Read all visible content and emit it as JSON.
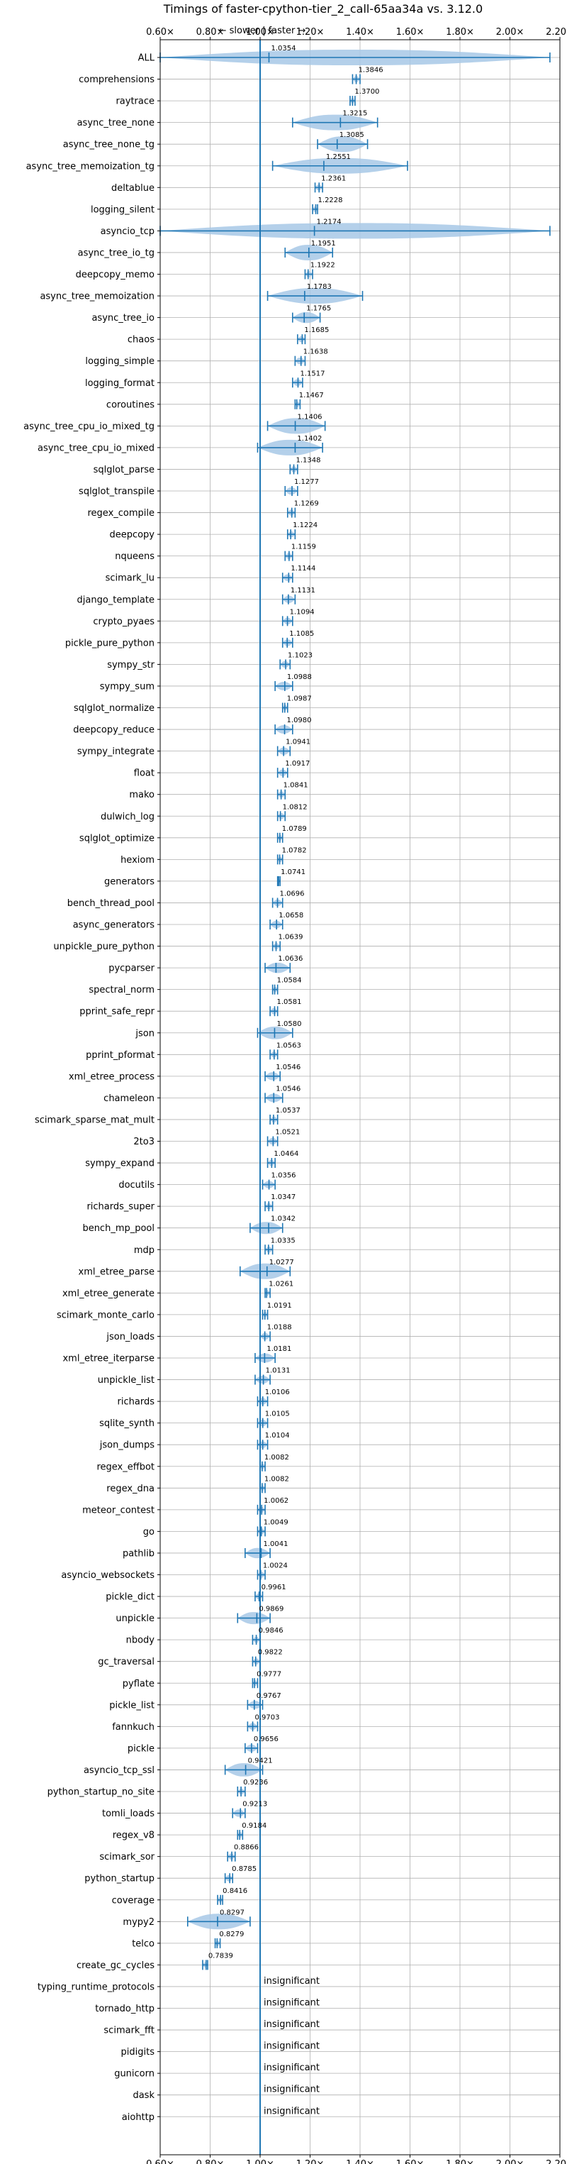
{
  "chart_data": {
    "type": "violin",
    "title": "Timings of faster-cpython-tier_2_call-65aa34a vs. 3.12.0",
    "direction_hint": "← slower | faster →",
    "xlim": [
      0.6,
      2.2
    ],
    "xticks": [
      "0.60×",
      "0.80×",
      "1.00×",
      "1.20×",
      "1.40×",
      "1.60×",
      "1.80×",
      "2.00×",
      "2.20×"
    ],
    "reference_line": 1.0,
    "grid": true,
    "insignificant_label": "insignificant",
    "colors": {
      "violin": "#a7c8e6",
      "whisker": "#1f77b4",
      "median": "#d62728",
      "reference": "#1f77b4",
      "grid": "#b0b0b0"
    },
    "benchmarks": [
      {
        "name": "ALL",
        "value": "1.0354",
        "mean": 1.0354,
        "min": 0.6,
        "max": 2.16
      },
      {
        "name": "comprehensions",
        "value": "1.3846",
        "mean": 1.3846,
        "min": 1.37,
        "max": 1.4
      },
      {
        "name": "raytrace",
        "value": "1.3700",
        "mean": 1.37,
        "min": 1.36,
        "max": 1.38
      },
      {
        "name": "async_tree_none",
        "value": "1.3215",
        "mean": 1.3215,
        "min": 1.13,
        "max": 1.47
      },
      {
        "name": "async_tree_none_tg",
        "value": "1.3085",
        "mean": 1.3085,
        "min": 1.23,
        "max": 1.43
      },
      {
        "name": "async_tree_memoization_tg",
        "value": "1.2551",
        "mean": 1.2551,
        "min": 1.05,
        "max": 1.59
      },
      {
        "name": "deltablue",
        "value": "1.2361",
        "mean": 1.2361,
        "min": 1.22,
        "max": 1.25
      },
      {
        "name": "logging_silent",
        "value": "1.2228",
        "mean": 1.2228,
        "min": 1.21,
        "max": 1.23
      },
      {
        "name": "asyncio_tcp",
        "value": "1.2174",
        "mean": 1.2174,
        "min": 0.6,
        "max": 2.16
      },
      {
        "name": "async_tree_io_tg",
        "value": "1.1951",
        "mean": 1.1951,
        "min": 1.1,
        "max": 1.29
      },
      {
        "name": "deepcopy_memo",
        "value": "1.1922",
        "mean": 1.1922,
        "min": 1.18,
        "max": 1.21
      },
      {
        "name": "async_tree_memoization",
        "value": "1.1783",
        "mean": 1.1783,
        "min": 1.03,
        "max": 1.41
      },
      {
        "name": "async_tree_io",
        "value": "1.1765",
        "mean": 1.1765,
        "min": 1.13,
        "max": 1.24
      },
      {
        "name": "chaos",
        "value": "1.1685",
        "mean": 1.1685,
        "min": 1.15,
        "max": 1.18
      },
      {
        "name": "logging_simple",
        "value": "1.1638",
        "mean": 1.1638,
        "min": 1.14,
        "max": 1.18
      },
      {
        "name": "logging_format",
        "value": "1.1517",
        "mean": 1.1517,
        "min": 1.13,
        "max": 1.17
      },
      {
        "name": "coroutines",
        "value": "1.1467",
        "mean": 1.1467,
        "min": 1.14,
        "max": 1.16
      },
      {
        "name": "async_tree_cpu_io_mixed_tg",
        "value": "1.1406",
        "mean": 1.1406,
        "min": 1.03,
        "max": 1.26
      },
      {
        "name": "async_tree_cpu_io_mixed",
        "value": "1.1402",
        "mean": 1.1402,
        "min": 0.99,
        "max": 1.25
      },
      {
        "name": "sqlglot_parse",
        "value": "1.1348",
        "mean": 1.1348,
        "min": 1.12,
        "max": 1.15
      },
      {
        "name": "sqlglot_transpile",
        "value": "1.1277",
        "mean": 1.1277,
        "min": 1.1,
        "max": 1.15
      },
      {
        "name": "regex_compile",
        "value": "1.1269",
        "mean": 1.1269,
        "min": 1.11,
        "max": 1.14
      },
      {
        "name": "deepcopy",
        "value": "1.1224",
        "mean": 1.1224,
        "min": 1.11,
        "max": 1.14
      },
      {
        "name": "nqueens",
        "value": "1.1159",
        "mean": 1.1159,
        "min": 1.1,
        "max": 1.13
      },
      {
        "name": "scimark_lu",
        "value": "1.1144",
        "mean": 1.1144,
        "min": 1.09,
        "max": 1.13
      },
      {
        "name": "django_template",
        "value": "1.1131",
        "mean": 1.1131,
        "min": 1.09,
        "max": 1.14
      },
      {
        "name": "crypto_pyaes",
        "value": "1.1094",
        "mean": 1.1094,
        "min": 1.09,
        "max": 1.13
      },
      {
        "name": "pickle_pure_python",
        "value": "1.1085",
        "mean": 1.1085,
        "min": 1.09,
        "max": 1.13
      },
      {
        "name": "sympy_str",
        "value": "1.1023",
        "mean": 1.1023,
        "min": 1.08,
        "max": 1.12
      },
      {
        "name": "sympy_sum",
        "value": "1.0988",
        "mean": 1.0988,
        "min": 1.06,
        "max": 1.13
      },
      {
        "name": "sqlglot_normalize",
        "value": "1.0987",
        "mean": 1.0987,
        "min": 1.09,
        "max": 1.11
      },
      {
        "name": "deepcopy_reduce",
        "value": "1.0980",
        "mean": 1.098,
        "min": 1.06,
        "max": 1.13
      },
      {
        "name": "sympy_integrate",
        "value": "1.0941",
        "mean": 1.0941,
        "min": 1.07,
        "max": 1.12
      },
      {
        "name": "float",
        "value": "1.0917",
        "mean": 1.0917,
        "min": 1.07,
        "max": 1.11
      },
      {
        "name": "mako",
        "value": "1.0841",
        "mean": 1.0841,
        "min": 1.07,
        "max": 1.1
      },
      {
        "name": "dulwich_log",
        "value": "1.0812",
        "mean": 1.0812,
        "min": 1.07,
        "max": 1.1
      },
      {
        "name": "sqlglot_optimize",
        "value": "1.0789",
        "mean": 1.0789,
        "min": 1.07,
        "max": 1.09
      },
      {
        "name": "hexiom",
        "value": "1.0782",
        "mean": 1.0782,
        "min": 1.07,
        "max": 1.09
      },
      {
        "name": "generators",
        "value": "1.0741",
        "mean": 1.0741,
        "min": 1.07,
        "max": 1.08
      },
      {
        "name": "bench_thread_pool",
        "value": "1.0696",
        "mean": 1.0696,
        "min": 1.05,
        "max": 1.09
      },
      {
        "name": "async_generators",
        "value": "1.0658",
        "mean": 1.0658,
        "min": 1.04,
        "max": 1.09
      },
      {
        "name": "unpickle_pure_python",
        "value": "1.0639",
        "mean": 1.0639,
        "min": 1.05,
        "max": 1.08
      },
      {
        "name": "pycparser",
        "value": "1.0636",
        "mean": 1.0636,
        "min": 1.02,
        "max": 1.12
      },
      {
        "name": "spectral_norm",
        "value": "1.0584",
        "mean": 1.0584,
        "min": 1.05,
        "max": 1.07
      },
      {
        "name": "pprint_safe_repr",
        "value": "1.0581",
        "mean": 1.0581,
        "min": 1.04,
        "max": 1.07
      },
      {
        "name": "json",
        "value": "1.0580",
        "mean": 1.058,
        "min": 0.99,
        "max": 1.13
      },
      {
        "name": "pprint_pformat",
        "value": "1.0563",
        "mean": 1.0563,
        "min": 1.04,
        "max": 1.07
      },
      {
        "name": "xml_etree_process",
        "value": "1.0546",
        "mean": 1.0546,
        "min": 1.02,
        "max": 1.08
      },
      {
        "name": "chameleon",
        "value": "1.0546",
        "mean": 1.0546,
        "min": 1.02,
        "max": 1.09
      },
      {
        "name": "scimark_sparse_mat_mult",
        "value": "1.0537",
        "mean": 1.0537,
        "min": 1.04,
        "max": 1.07
      },
      {
        "name": "2to3",
        "value": "1.0521",
        "mean": 1.0521,
        "min": 1.03,
        "max": 1.07
      },
      {
        "name": "sympy_expand",
        "value": "1.0464",
        "mean": 1.0464,
        "min": 1.03,
        "max": 1.06
      },
      {
        "name": "docutils",
        "value": "1.0356",
        "mean": 1.0356,
        "min": 1.01,
        "max": 1.06
      },
      {
        "name": "richards_super",
        "value": "1.0347",
        "mean": 1.0347,
        "min": 1.02,
        "max": 1.05
      },
      {
        "name": "bench_mp_pool",
        "value": "1.0342",
        "mean": 1.0342,
        "min": 0.96,
        "max": 1.09
      },
      {
        "name": "mdp",
        "value": "1.0335",
        "mean": 1.0335,
        "min": 1.02,
        "max": 1.05
      },
      {
        "name": "xml_etree_parse",
        "value": "1.0277",
        "mean": 1.0277,
        "min": 0.92,
        "max": 1.12
      },
      {
        "name": "xml_etree_generate",
        "value": "1.0261",
        "mean": 1.0261,
        "min": 1.02,
        "max": 1.04
      },
      {
        "name": "scimark_monte_carlo",
        "value": "1.0191",
        "mean": 1.0191,
        "min": 1.01,
        "max": 1.03
      },
      {
        "name": "json_loads",
        "value": "1.0188",
        "mean": 1.0188,
        "min": 1.0,
        "max": 1.04
      },
      {
        "name": "xml_etree_iterparse",
        "value": "1.0181",
        "mean": 1.0181,
        "min": 0.98,
        "max": 1.06
      },
      {
        "name": "unpickle_list",
        "value": "1.0131",
        "mean": 1.0131,
        "min": 0.98,
        "max": 1.04
      },
      {
        "name": "richards",
        "value": "1.0106",
        "mean": 1.0106,
        "min": 0.99,
        "max": 1.03
      },
      {
        "name": "sqlite_synth",
        "value": "1.0105",
        "mean": 1.0105,
        "min": 0.99,
        "max": 1.03
      },
      {
        "name": "json_dumps",
        "value": "1.0104",
        "mean": 1.0104,
        "min": 0.99,
        "max": 1.03
      },
      {
        "name": "regex_effbot",
        "value": "1.0082",
        "mean": 1.0082,
        "min": 1.0,
        "max": 1.02
      },
      {
        "name": "regex_dna",
        "value": "1.0082",
        "mean": 1.0082,
        "min": 1.0,
        "max": 1.02
      },
      {
        "name": "meteor_contest",
        "value": "1.0062",
        "mean": 1.0062,
        "min": 0.99,
        "max": 1.02
      },
      {
        "name": "go",
        "value": "1.0049",
        "mean": 1.0049,
        "min": 0.99,
        "max": 1.02
      },
      {
        "name": "pathlib",
        "value": "1.0041",
        "mean": 1.0041,
        "min": 0.94,
        "max": 1.04
      },
      {
        "name": "asyncio_websockets",
        "value": "1.0024",
        "mean": 1.0024,
        "min": 0.99,
        "max": 1.02
      },
      {
        "name": "pickle_dict",
        "value": "0.9961",
        "mean": 0.9961,
        "min": 0.98,
        "max": 1.01
      },
      {
        "name": "unpickle",
        "value": "0.9869",
        "mean": 0.9869,
        "min": 0.91,
        "max": 1.04
      },
      {
        "name": "nbody",
        "value": "0.9846",
        "mean": 0.9846,
        "min": 0.97,
        "max": 1.0
      },
      {
        "name": "gc_traversal",
        "value": "0.9822",
        "mean": 0.9822,
        "min": 0.97,
        "max": 1.0
      },
      {
        "name": "pyflate",
        "value": "0.9777",
        "mean": 0.9777,
        "min": 0.97,
        "max": 0.99
      },
      {
        "name": "pickle_list",
        "value": "0.9767",
        "mean": 0.9767,
        "min": 0.95,
        "max": 1.01
      },
      {
        "name": "fannkuch",
        "value": "0.9703",
        "mean": 0.9703,
        "min": 0.95,
        "max": 0.99
      },
      {
        "name": "pickle",
        "value": "0.9656",
        "mean": 0.9656,
        "min": 0.94,
        "max": 0.99
      },
      {
        "name": "asyncio_tcp_ssl",
        "value": "0.9421",
        "mean": 0.9421,
        "min": 0.86,
        "max": 1.01
      },
      {
        "name": "python_startup_no_site",
        "value": "0.9236",
        "mean": 0.9236,
        "min": 0.91,
        "max": 0.94
      },
      {
        "name": "tomli_loads",
        "value": "0.9213",
        "mean": 0.9213,
        "min": 0.89,
        "max": 0.94
      },
      {
        "name": "regex_v8",
        "value": "0.9184",
        "mean": 0.9184,
        "min": 0.91,
        "max": 0.93
      },
      {
        "name": "scimark_sor",
        "value": "0.8866",
        "mean": 0.8866,
        "min": 0.87,
        "max": 0.9
      },
      {
        "name": "python_startup",
        "value": "0.8785",
        "mean": 0.8785,
        "min": 0.86,
        "max": 0.89
      },
      {
        "name": "coverage",
        "value": "0.8416",
        "mean": 0.8416,
        "min": 0.83,
        "max": 0.85
      },
      {
        "name": "mypy2",
        "value": "0.8297",
        "mean": 0.8297,
        "min": 0.71,
        "max": 0.96
      },
      {
        "name": "telco",
        "value": "0.8279",
        "mean": 0.8279,
        "min": 0.82,
        "max": 0.84
      },
      {
        "name": "create_gc_cycles",
        "value": "0.7839",
        "mean": 0.7839,
        "min": 0.77,
        "max": 0.79
      },
      {
        "name": "typing_runtime_protocols",
        "value": "insignificant",
        "insignificant": true
      },
      {
        "name": "tornado_http",
        "value": "insignificant",
        "insignificant": true
      },
      {
        "name": "scimark_fft",
        "value": "insignificant",
        "insignificant": true
      },
      {
        "name": "pidigits",
        "value": "insignificant",
        "insignificant": true
      },
      {
        "name": "gunicorn",
        "value": "insignificant",
        "insignificant": true
      },
      {
        "name": "dask",
        "value": "insignificant",
        "insignificant": true
      },
      {
        "name": "aiohttp",
        "value": "insignificant",
        "insignificant": true
      }
    ]
  }
}
